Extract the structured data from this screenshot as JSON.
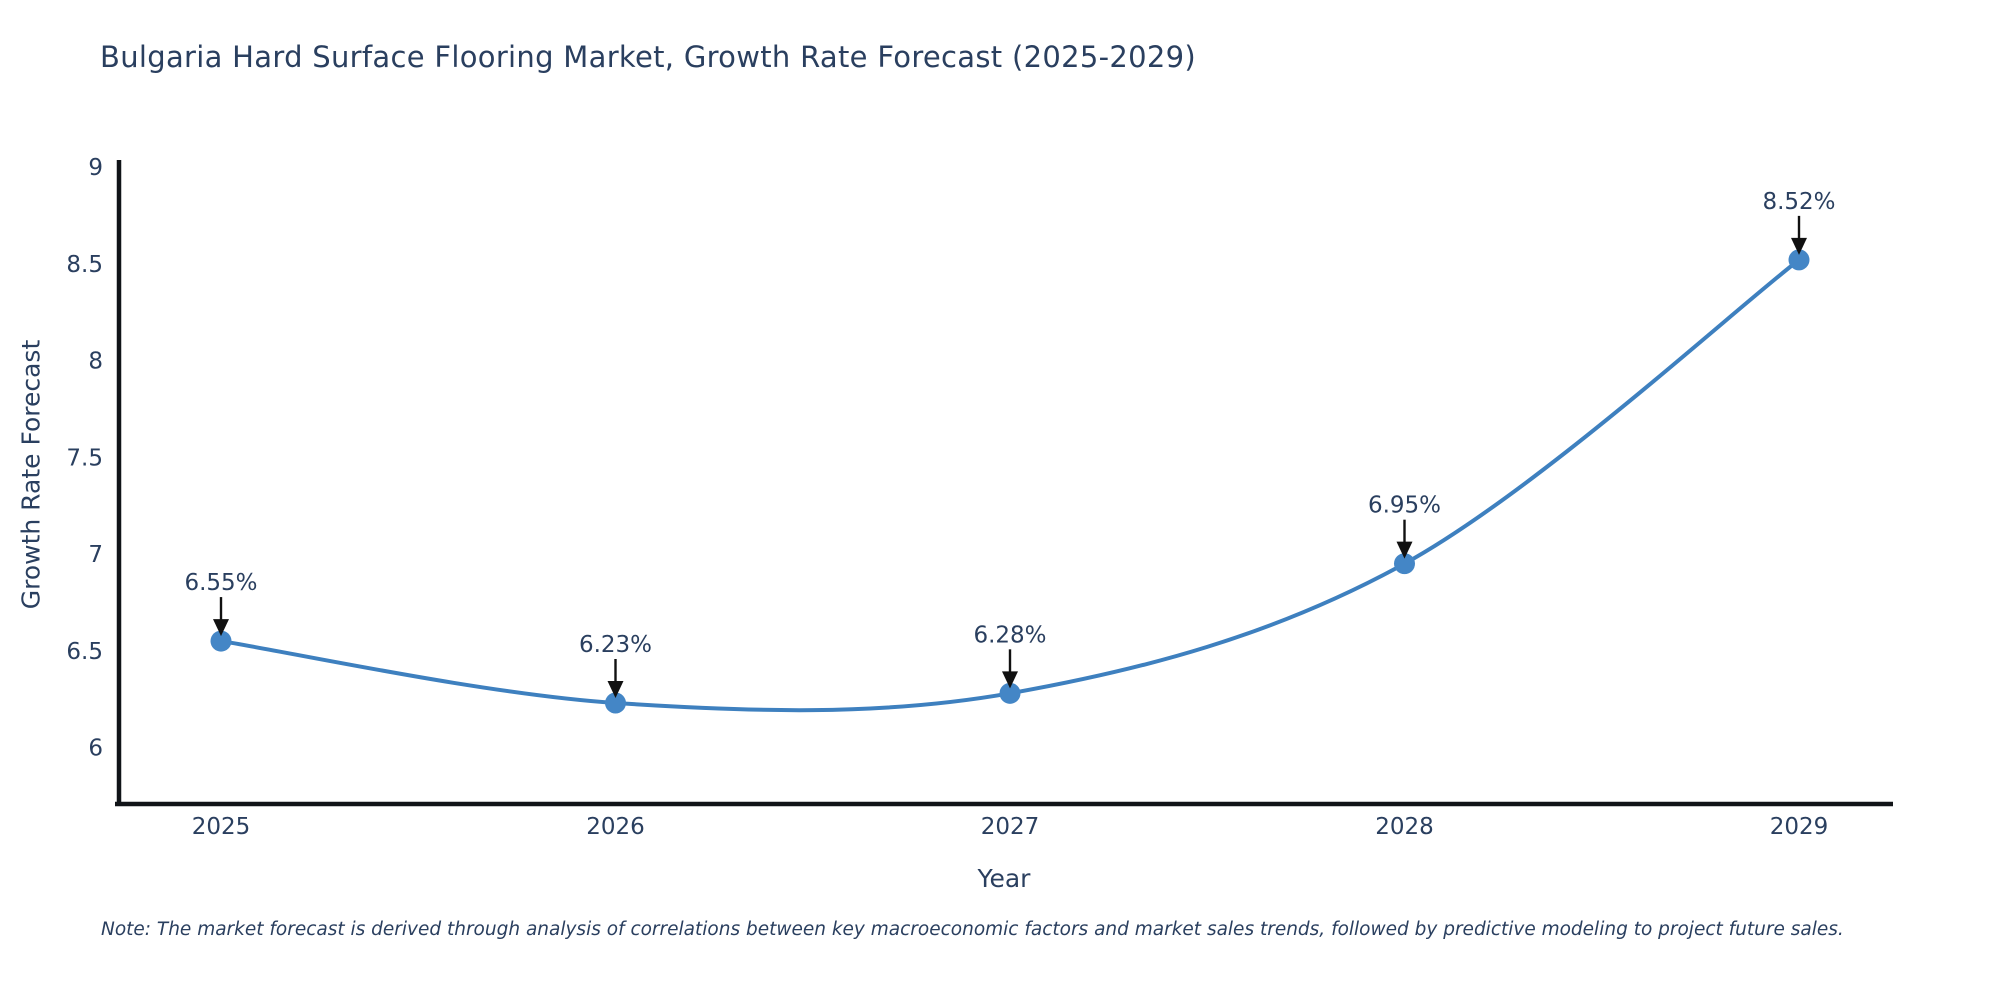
{
  "chart": {
    "title": "Bulgaria Hard Surface Flooring Market, Growth Rate Forecast (2025-2029)",
    "xlabel": "Year",
    "ylabel": "Growth Rate Forecast",
    "note": "Note: The market forecast is derived through analysis of correlations between key macroeconomic factors and market sales trends, followed by predictive modeling to project future sales.",
    "colors": {
      "line": "#3e80bf",
      "marker": "#4486c6",
      "axis": "#111418",
      "text": "#2a3f5f",
      "arrow": "#111111",
      "background": "#ffffff"
    }
  },
  "chart_data": {
    "type": "line",
    "x": [
      2025,
      2026,
      2027,
      2028,
      2029
    ],
    "values": [
      6.55,
      6.23,
      6.28,
      6.95,
      8.52
    ],
    "point_labels": [
      "6.55%",
      "6.23%",
      "6.28%",
      "6.95%",
      "8.52%"
    ],
    "title": "Bulgaria Hard Surface Flooring Market, Growth Rate Forecast (2025-2029)",
    "xlabel": "Year",
    "ylabel": "Growth Rate Forecast",
    "xticks": [
      "2025",
      "2026",
      "2027",
      "2028",
      "2029"
    ],
    "yticks": [
      6,
      6.5,
      7,
      7.5,
      8,
      8.5,
      9
    ],
    "ylim": [
      5.71,
      9.05
    ],
    "grid": false,
    "legend": "none",
    "line_style": "smooth-spline",
    "annotations": "value labels with downward arrows above each point"
  }
}
